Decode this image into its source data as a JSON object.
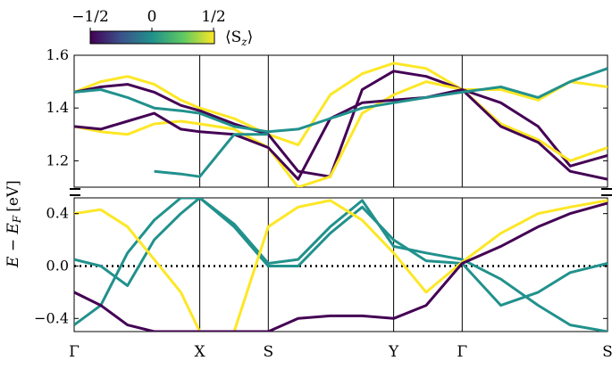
{
  "chart_data": {
    "type": "line",
    "ylabel": "E − E",
    "ylabel_sub": "F",
    "ylabel_unit": "[eV]",
    "broken_axis": true,
    "upper": {
      "ylim": [
        1.1,
        1.6
      ],
      "yticks": [
        "1.2",
        "1.4",
        "1.6"
      ]
    },
    "lower": {
      "ylim": [
        -0.5,
        0.52
      ],
      "yticks": [
        "−0.4",
        "0.0",
        "0.4"
      ]
    },
    "kpath": [
      {
        "label": "Γ",
        "pos": 0.0
      },
      {
        "label": "X",
        "pos": 0.2355
      },
      {
        "label": "S",
        "pos": 0.364
      },
      {
        "label": "Y",
        "pos": 0.599
      },
      {
        "label": "Γ",
        "pos": 0.7275
      },
      {
        "label": "S",
        "pos": 1.0
      }
    ],
    "fermi_level": 0.0,
    "colorbar": {
      "label": "⟨S",
      "label_sub": "z",
      "label_close": "⟩",
      "ticks": [
        "−1/2",
        "0",
        "1/2"
      ],
      "range": [
        -0.5,
        0.5
      ],
      "colormap": [
        "#440154",
        "#3b528b",
        "#21918c",
        "#5ec962",
        "#fde725"
      ]
    },
    "series": [
      {
        "color": 0.5,
        "x": [
          0,
          0.05,
          0.1,
          0.15,
          0.2,
          0.2355,
          0.3,
          0.364,
          0.42,
          0.48,
          0.54,
          0.599,
          0.66,
          0.7275,
          0.8,
          0.87,
          0.93,
          1.0
        ],
        "y": [
          1.46,
          1.5,
          1.52,
          1.49,
          1.43,
          1.4,
          1.36,
          1.3,
          1.26,
          1.45,
          1.53,
          1.57,
          1.55,
          1.47,
          1.47,
          1.43,
          1.5,
          1.48
        ]
      },
      {
        "color": -0.5,
        "x": [
          0,
          0.05,
          0.1,
          0.15,
          0.2,
          0.2355,
          0.3,
          0.364,
          0.42,
          0.48,
          0.54,
          0.599,
          0.66,
          0.7275,
          0.8,
          0.87,
          0.93,
          1.0
        ],
        "y": [
          1.46,
          1.48,
          1.49,
          1.46,
          1.41,
          1.39,
          1.34,
          1.3,
          1.16,
          1.14,
          1.47,
          1.54,
          1.52,
          1.47,
          1.42,
          1.33,
          1.18,
          1.22
        ]
      },
      {
        "color": 0.5,
        "x": [
          0,
          0.05,
          0.1,
          0.15,
          0.2,
          0.2355,
          0.3,
          0.364,
          0.42,
          0.48,
          0.54,
          0.599,
          0.66,
          0.7275,
          0.8,
          0.87,
          0.93,
          1.0
        ],
        "y": [
          1.33,
          1.31,
          1.3,
          1.34,
          1.35,
          1.34,
          1.32,
          1.25,
          1.1,
          1.14,
          1.38,
          1.45,
          1.5,
          1.47,
          1.34,
          1.28,
          1.2,
          1.25
        ]
      },
      {
        "color": -0.5,
        "x": [
          0,
          0.05,
          0.1,
          0.15,
          0.2,
          0.2355,
          0.3,
          0.364,
          0.42,
          0.48,
          0.54,
          0.599,
          0.66,
          0.7275,
          0.8,
          0.87,
          0.93,
          1.0
        ],
        "y": [
          1.33,
          1.32,
          1.35,
          1.38,
          1.32,
          1.31,
          1.3,
          1.25,
          1.13,
          1.36,
          1.42,
          1.43,
          1.44,
          1.47,
          1.33,
          1.27,
          1.16,
          1.13
        ]
      },
      {
        "color": 0.0,
        "x": [
          0,
          0.05,
          0.1,
          0.15,
          0.2,
          0.2355,
          0.3,
          0.364,
          0.42,
          0.48,
          0.54,
          0.599,
          0.66,
          0.7275,
          0.8,
          0.87,
          0.93,
          1.0
        ],
        "y": [
          1.46,
          1.47,
          1.44,
          1.4,
          1.39,
          1.38,
          1.33,
          1.31,
          1.32,
          1.36,
          1.4,
          1.42,
          1.44,
          1.46,
          1.48,
          1.44,
          1.5,
          1.55
        ]
      },
      {
        "color": 0.0,
        "x": [
          0.15,
          0.2,
          0.2355,
          0.3,
          0.364
        ],
        "y": [
          1.16,
          1.15,
          1.14,
          1.3,
          1.3
        ]
      },
      {
        "color": 0.0,
        "x": [
          0,
          0.05,
          0.1,
          0.15,
          0.2,
          0.2355,
          0.3,
          0.364,
          0.42,
          0.48,
          0.54,
          0.599,
          0.66,
          0.7275,
          0.8,
          0.87,
          0.93,
          1.0
        ],
        "y": [
          -0.45,
          -0.3,
          0.1,
          0.35,
          0.52,
          0.52,
          0.3,
          0.0,
          0.0,
          0.25,
          0.45,
          0.2,
          0.04,
          0.02,
          -0.3,
          -0.2,
          -0.05,
          0.02
        ]
      },
      {
        "color": 0.0,
        "x": [
          0,
          0.05,
          0.1,
          0.15,
          0.2,
          0.2355,
          0.3,
          0.364,
          0.42,
          0.48,
          0.54,
          0.599,
          0.66,
          0.7275,
          0.8,
          0.87,
          0.93,
          1.0
        ],
        "y": [
          0.05,
          0.0,
          -0.15,
          0.2,
          0.4,
          0.52,
          0.32,
          0.02,
          0.05,
          0.3,
          0.5,
          0.15,
          0.1,
          0.05,
          -0.1,
          -0.3,
          -0.45,
          -0.5
        ]
      },
      {
        "color": 0.5,
        "x": [
          0,
          0.05,
          0.1,
          0.15,
          0.2,
          0.2355,
          0.3,
          0.364,
          0.42,
          0.48,
          0.54,
          0.599,
          0.66,
          0.7275,
          0.8,
          0.87,
          0.93,
          1.0
        ],
        "y": [
          0.4,
          0.43,
          0.3,
          0.05,
          -0.2,
          -0.5,
          -0.5,
          0.3,
          0.45,
          0.5,
          0.35,
          0.1,
          -0.2,
          0.03,
          0.25,
          0.4,
          0.45,
          0.5
        ]
      },
      {
        "color": -0.5,
        "x": [
          0,
          0.05,
          0.1,
          0.15,
          0.2,
          0.2355,
          0.3,
          0.364,
          0.42,
          0.48,
          0.54,
          0.599,
          0.66,
          0.7275,
          0.8,
          0.87,
          0.93,
          1.0
        ],
        "y": [
          -0.2,
          -0.3,
          -0.45,
          -0.5,
          -0.5,
          -0.5,
          -0.5,
          -0.5,
          -0.4,
          -0.38,
          -0.38,
          -0.4,
          -0.3,
          0.02,
          0.15,
          0.3,
          0.4,
          0.48
        ]
      }
    ]
  }
}
